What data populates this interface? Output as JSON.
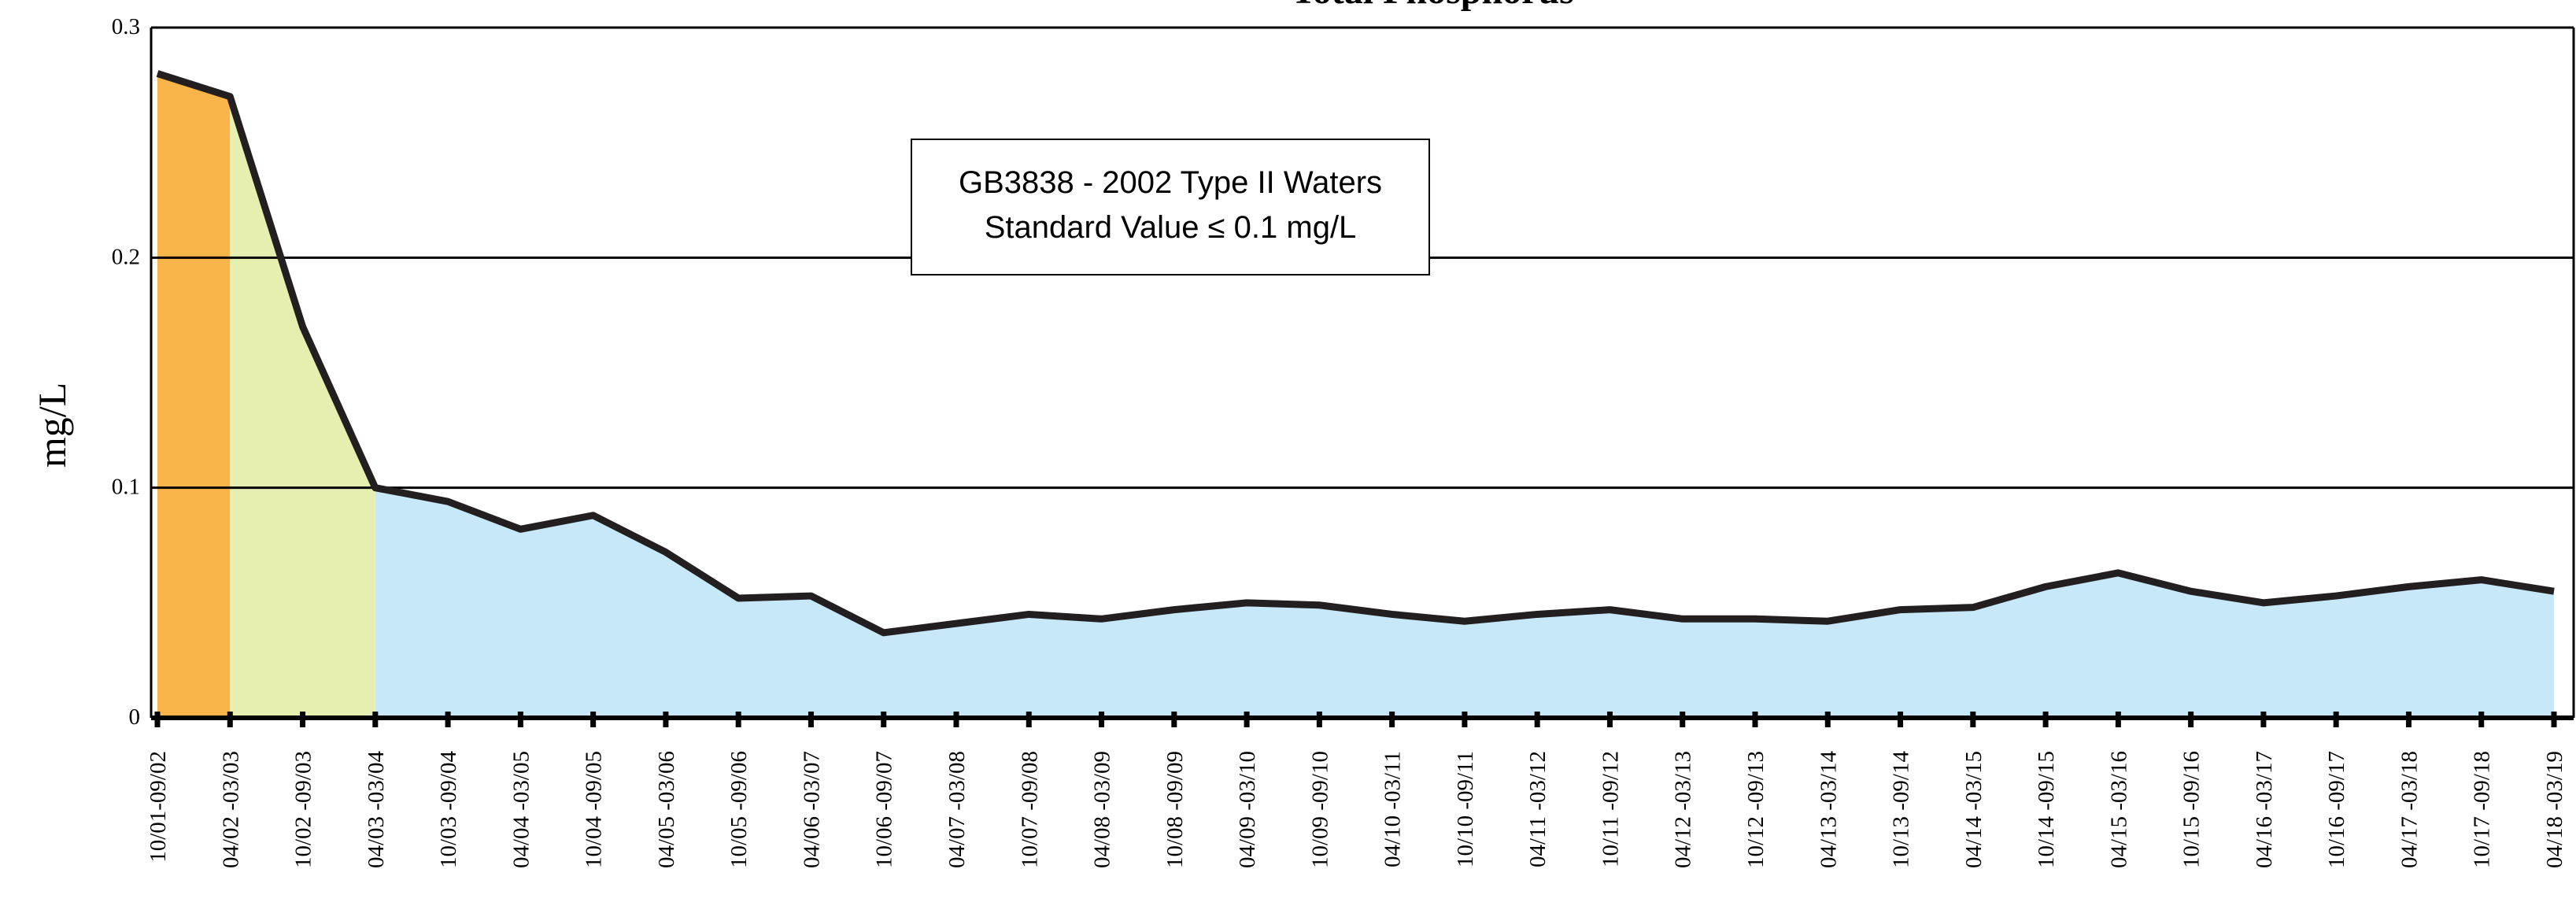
{
  "chart_data": {
    "type": "area",
    "title": "Total Phosphorus",
    "y_label": "mg/L",
    "annotation": [
      "GB3838 - 2002 Type II Waters",
      "Standard Value ≤ 0.1 mg/L"
    ],
    "categories": [
      "10/01-09/02",
      "04/02 -03/03",
      "10/02 -09/03",
      "04/03 -03/04",
      "10/03 -09/04",
      "04/04 -03/05",
      "10/04 -09/05",
      "04/05 -03/06",
      "10/05 -09/06",
      "04/06 -03/07",
      "10/06 -09/07",
      "04/07 -03/08",
      "10/07 -09/08",
      "04/08 -03/09",
      "10/08 -09/09",
      "04/09 -03/10",
      "10/09 -09/10",
      "04/10 -03/11",
      "10/10 -09/11",
      "04/11 -03/12",
      "10/11 -09/12",
      "04/12 -03/13",
      "10/12 -09/13",
      "04/13 -03/14",
      "10/13 -09/14",
      "04/14 -03/15",
      "10/14 -09/15",
      "04/15 -03/16",
      "10/15 -09/16",
      "04/16 -03/17",
      "10/16 -09/17",
      "04/17 -03/18",
      "10/17 -09/18",
      "04/18 -03/19"
    ],
    "values": [
      0.28,
      0.27,
      0.17,
      0.1,
      0.094,
      0.082,
      0.088,
      0.072,
      0.052,
      0.053,
      0.037,
      0.041,
      0.045,
      0.043,
      0.047,
      0.05,
      0.049,
      0.045,
      0.042,
      0.045,
      0.047,
      0.043,
      0.043,
      0.042,
      0.047,
      0.048,
      0.057,
      0.063,
      0.055,
      0.05,
      0.053,
      0.057,
      0.06,
      0.055
    ],
    "line_color": "#231f20",
    "areas": [
      {
        "start": 0,
        "end": 1,
        "color": "#f9b54a"
      },
      {
        "start": 1,
        "end": 3,
        "color": "#e6eeb0"
      },
      {
        "start": 3,
        "end": 33,
        "color": "#c6e8f8"
      }
    ],
    "ylim": [
      0,
      0.3
    ],
    "yticks": [
      0,
      0.1,
      0.2,
      0.3
    ],
    "grid": true
  }
}
